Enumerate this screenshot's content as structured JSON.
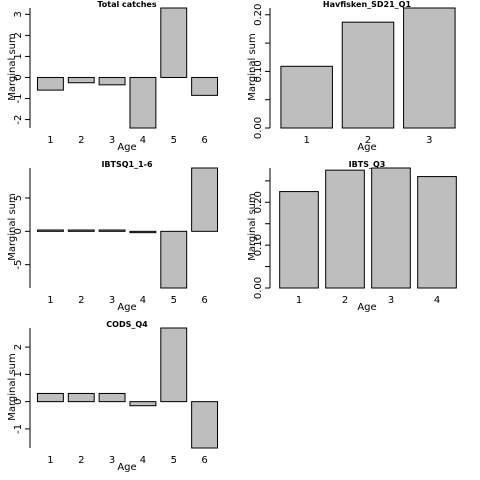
{
  "chart_data": [
    {
      "type": "bar",
      "title": "Total catches",
      "xlabel": "Age",
      "ylabel": "Marginal sum",
      "categories": [
        "1",
        "2",
        "3",
        "4",
        "5",
        "6"
      ],
      "values": [
        -0.6,
        -0.25,
        -0.35,
        -2.4,
        3.3,
        -0.85
      ],
      "ylim": [
        -2.4,
        3.3
      ],
      "yticks": [
        -2,
        -1,
        0,
        1,
        2,
        3
      ],
      "ytick_labels": [
        "-2",
        "-1",
        "0",
        "1",
        "2",
        "3"
      ]
    },
    {
      "type": "bar",
      "title": "Havfisken_SD21_Q1",
      "xlabel": "Age",
      "ylabel": "Marginal sum",
      "categories": [
        "1",
        "2",
        "3"
      ],
      "values": [
        0.109,
        0.187,
        0.212
      ],
      "ylim": [
        0,
        0.212
      ],
      "yticks": [
        0,
        0.05,
        0.1,
        0.15,
        0.2
      ],
      "ytick_labels": [
        "0.00",
        "",
        "0.10",
        "",
        "0.20"
      ]
    },
    {
      "type": "bar",
      "title": "IBTSQ1_1-6",
      "xlabel": "Age",
      "ylabel": "Marginal sum",
      "categories": [
        "1",
        "2",
        "3",
        "4",
        "5",
        "6"
      ],
      "values": [
        0.2,
        0.2,
        0.2,
        -0.2,
        -8.5,
        9.5
      ],
      "ylim": [
        -8.5,
        9.5
      ],
      "yticks": [
        -5,
        0,
        5
      ],
      "ytick_labels": [
        "-5",
        "0",
        "5"
      ]
    },
    {
      "type": "bar",
      "title": "IBTS_Q3",
      "xlabel": "Age",
      "ylabel": "Marginal sum",
      "categories": [
        "1",
        "2",
        "3",
        "4"
      ],
      "values": [
        0.225,
        0.275,
        0.28,
        0.26
      ],
      "ylim": [
        0,
        0.28
      ],
      "yticks": [
        0,
        0.05,
        0.1,
        0.15,
        0.2,
        0.25
      ],
      "ytick_labels": [
        "0.00",
        "",
        "0.10",
        "",
        "0.20",
        ""
      ]
    },
    {
      "type": "bar",
      "title": "CODS_Q4",
      "xlabel": "Age",
      "ylabel": "Marginal sum",
      "categories": [
        "1",
        "2",
        "3",
        "4",
        "5",
        "6"
      ],
      "values": [
        0.3,
        0.3,
        0.3,
        -0.15,
        2.7,
        -1.7
      ],
      "ylim": [
        -1.7,
        2.7
      ],
      "yticks": [
        -1,
        0,
        1,
        2
      ],
      "ytick_labels": [
        "-1",
        "0",
        "1",
        "2"
      ]
    }
  ]
}
